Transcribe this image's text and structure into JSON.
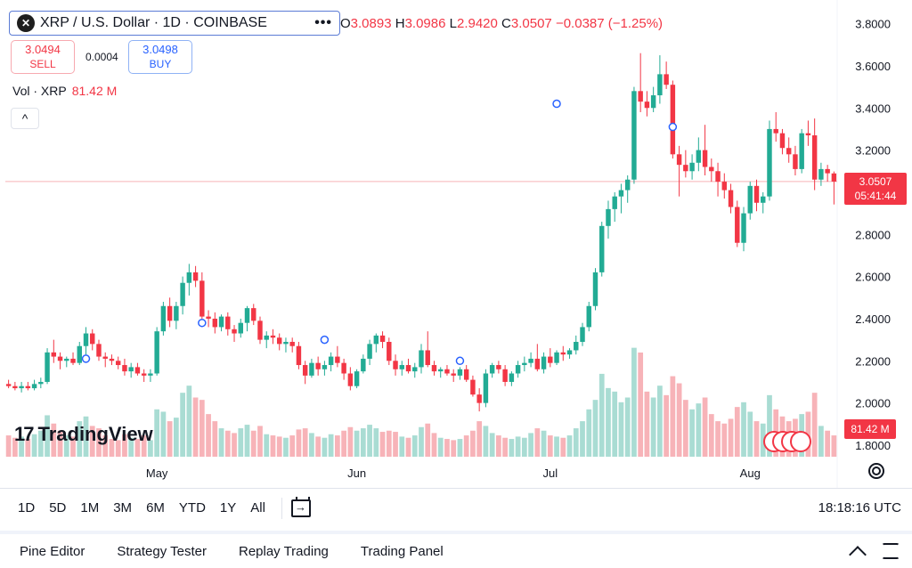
{
  "header": {
    "symbol_title": "XRP / U.S. Dollar · 1D · COINBASE",
    "logo_glyph": "✕",
    "more_icon": "•••",
    "ohlc": {
      "open_label": "O",
      "open": "3.0893",
      "high_label": "H",
      "high": "3.0986",
      "low_label": "L",
      "low": "2.9420",
      "close_label": "C",
      "close": "3.0507",
      "change": "−0.0387 (−1.25%)"
    }
  },
  "trade": {
    "sell_price": "3.0494",
    "sell_label": "SELL",
    "spread": "0.0004",
    "buy_price": "3.0498",
    "buy_label": "BUY"
  },
  "volume_legend": {
    "label": "Vol · XRP",
    "value": "81.42 M"
  },
  "collapse_icon": "^",
  "brand": {
    "mark": "17",
    "name": "TradingView"
  },
  "price_tag": {
    "price": "3.0507",
    "countdown": "05:41:44"
  },
  "volume_tag": "81.42 M",
  "colors": {
    "up": "#22ab94",
    "down": "#f23645",
    "up_vol": "#a9dcd3",
    "down_vol": "#f7b3b8"
  },
  "chart_data": {
    "type": "candlestick",
    "y_axis": {
      "ticks": [
        1.8,
        2.0,
        2.2,
        2.4,
        2.6,
        2.8,
        3.0,
        3.2,
        3.4,
        3.6,
        3.8
      ],
      "tick_labels": [
        "1.8000",
        "2.0000",
        "2.2000",
        "2.4000",
        "2.6000",
        "2.8000",
        "3.0000",
        "3.2000",
        "3.4000",
        "3.6000",
        "3.8000"
      ],
      "range": [
        1.745,
        3.87
      ]
    },
    "x_axis": {
      "labels": [
        {
          "text": "May",
          "index": 23
        },
        {
          "text": "Jun",
          "index": 54
        },
        {
          "text": "Jul",
          "index": 84
        },
        {
          "text": "Aug",
          "index": 115
        }
      ],
      "count": 129
    },
    "last_price": 3.0507,
    "volume_axis_max": 100,
    "candles": [
      {
        "o": 2.09,
        "h": 2.11,
        "l": 2.07,
        "c": 2.08,
        "v": 18
      },
      {
        "o": 2.08,
        "h": 2.1,
        "l": 2.06,
        "c": 2.07,
        "v": 16
      },
      {
        "o": 2.07,
        "h": 2.1,
        "l": 2.05,
        "c": 2.08,
        "v": 17
      },
      {
        "o": 2.08,
        "h": 2.1,
        "l": 2.06,
        "c": 2.07,
        "v": 15
      },
      {
        "o": 2.07,
        "h": 2.11,
        "l": 2.06,
        "c": 2.09,
        "v": 19
      },
      {
        "o": 2.09,
        "h": 2.12,
        "l": 2.07,
        "c": 2.1,
        "v": 22
      },
      {
        "o": 2.1,
        "h": 2.26,
        "l": 2.09,
        "c": 2.24,
        "v": 35
      },
      {
        "o": 2.24,
        "h": 2.3,
        "l": 2.19,
        "c": 2.22,
        "v": 28
      },
      {
        "o": 2.22,
        "h": 2.24,
        "l": 2.16,
        "c": 2.2,
        "v": 22
      },
      {
        "o": 2.2,
        "h": 2.22,
        "l": 2.17,
        "c": 2.21,
        "v": 18
      },
      {
        "o": 2.21,
        "h": 2.24,
        "l": 2.18,
        "c": 2.19,
        "v": 17
      },
      {
        "o": 2.19,
        "h": 2.29,
        "l": 2.18,
        "c": 2.27,
        "v": 30
      },
      {
        "o": 2.27,
        "h": 2.36,
        "l": 2.23,
        "c": 2.33,
        "v": 34
      },
      {
        "o": 2.33,
        "h": 2.35,
        "l": 2.25,
        "c": 2.28,
        "v": 26
      },
      {
        "o": 2.28,
        "h": 2.3,
        "l": 2.2,
        "c": 2.22,
        "v": 24
      },
      {
        "o": 2.22,
        "h": 2.24,
        "l": 2.17,
        "c": 2.21,
        "v": 18
      },
      {
        "o": 2.21,
        "h": 2.23,
        "l": 2.18,
        "c": 2.2,
        "v": 15
      },
      {
        "o": 2.2,
        "h": 2.22,
        "l": 2.16,
        "c": 2.18,
        "v": 14
      },
      {
        "o": 2.18,
        "h": 2.21,
        "l": 2.13,
        "c": 2.15,
        "v": 19
      },
      {
        "o": 2.15,
        "h": 2.19,
        "l": 2.12,
        "c": 2.17,
        "v": 16
      },
      {
        "o": 2.17,
        "h": 2.19,
        "l": 2.13,
        "c": 2.14,
        "v": 15
      },
      {
        "o": 2.14,
        "h": 2.16,
        "l": 2.1,
        "c": 2.13,
        "v": 18
      },
      {
        "o": 2.13,
        "h": 2.16,
        "l": 2.1,
        "c": 2.14,
        "v": 14
      },
      {
        "o": 2.14,
        "h": 2.36,
        "l": 2.13,
        "c": 2.34,
        "v": 40
      },
      {
        "o": 2.34,
        "h": 2.48,
        "l": 2.32,
        "c": 2.46,
        "v": 38
      },
      {
        "o": 2.46,
        "h": 2.5,
        "l": 2.36,
        "c": 2.39,
        "v": 30
      },
      {
        "o": 2.39,
        "h": 2.48,
        "l": 2.35,
        "c": 2.46,
        "v": 33
      },
      {
        "o": 2.46,
        "h": 2.6,
        "l": 2.42,
        "c": 2.57,
        "v": 54
      },
      {
        "o": 2.57,
        "h": 2.66,
        "l": 2.51,
        "c": 2.62,
        "v": 60
      },
      {
        "o": 2.62,
        "h": 2.65,
        "l": 2.55,
        "c": 2.58,
        "v": 50
      },
      {
        "o": 2.58,
        "h": 2.62,
        "l": 2.4,
        "c": 2.41,
        "v": 48
      },
      {
        "o": 2.41,
        "h": 2.44,
        "l": 2.36,
        "c": 2.4,
        "v": 36
      },
      {
        "o": 2.4,
        "h": 2.43,
        "l": 2.33,
        "c": 2.36,
        "v": 30
      },
      {
        "o": 2.36,
        "h": 2.42,
        "l": 2.34,
        "c": 2.41,
        "v": 24
      },
      {
        "o": 2.41,
        "h": 2.43,
        "l": 2.32,
        "c": 2.35,
        "v": 22
      },
      {
        "o": 2.35,
        "h": 2.37,
        "l": 2.29,
        "c": 2.33,
        "v": 20
      },
      {
        "o": 2.33,
        "h": 2.4,
        "l": 2.31,
        "c": 2.38,
        "v": 24
      },
      {
        "o": 2.38,
        "h": 2.46,
        "l": 2.34,
        "c": 2.45,
        "v": 27
      },
      {
        "o": 2.45,
        "h": 2.47,
        "l": 2.37,
        "c": 2.39,
        "v": 22
      },
      {
        "o": 2.39,
        "h": 2.41,
        "l": 2.28,
        "c": 2.3,
        "v": 26
      },
      {
        "o": 2.3,
        "h": 2.34,
        "l": 2.26,
        "c": 2.32,
        "v": 19
      },
      {
        "o": 2.32,
        "h": 2.35,
        "l": 2.28,
        "c": 2.31,
        "v": 18
      },
      {
        "o": 2.31,
        "h": 2.33,
        "l": 2.25,
        "c": 2.28,
        "v": 17
      },
      {
        "o": 2.28,
        "h": 2.31,
        "l": 2.24,
        "c": 2.29,
        "v": 16
      },
      {
        "o": 2.29,
        "h": 2.31,
        "l": 2.24,
        "c": 2.27,
        "v": 18
      },
      {
        "o": 2.27,
        "h": 2.29,
        "l": 2.16,
        "c": 2.18,
        "v": 23
      },
      {
        "o": 2.18,
        "h": 2.2,
        "l": 2.09,
        "c": 2.13,
        "v": 24
      },
      {
        "o": 2.13,
        "h": 2.21,
        "l": 2.12,
        "c": 2.19,
        "v": 20
      },
      {
        "o": 2.19,
        "h": 2.22,
        "l": 2.13,
        "c": 2.16,
        "v": 17
      },
      {
        "o": 2.16,
        "h": 2.2,
        "l": 2.13,
        "c": 2.18,
        "v": 16
      },
      {
        "o": 2.18,
        "h": 2.24,
        "l": 2.15,
        "c": 2.22,
        "v": 19
      },
      {
        "o": 2.22,
        "h": 2.27,
        "l": 2.17,
        "c": 2.19,
        "v": 18
      },
      {
        "o": 2.19,
        "h": 2.21,
        "l": 2.11,
        "c": 2.14,
        "v": 22
      },
      {
        "o": 2.14,
        "h": 2.17,
        "l": 2.06,
        "c": 2.08,
        "v": 25
      },
      {
        "o": 2.08,
        "h": 2.16,
        "l": 2.07,
        "c": 2.15,
        "v": 22
      },
      {
        "o": 2.15,
        "h": 2.23,
        "l": 2.14,
        "c": 2.21,
        "v": 24
      },
      {
        "o": 2.21,
        "h": 2.3,
        "l": 2.18,
        "c": 2.28,
        "v": 27
      },
      {
        "o": 2.28,
        "h": 2.33,
        "l": 2.24,
        "c": 2.32,
        "v": 24
      },
      {
        "o": 2.32,
        "h": 2.34,
        "l": 2.26,
        "c": 2.29,
        "v": 21
      },
      {
        "o": 2.29,
        "h": 2.31,
        "l": 2.18,
        "c": 2.2,
        "v": 22
      },
      {
        "o": 2.2,
        "h": 2.23,
        "l": 2.13,
        "c": 2.16,
        "v": 21
      },
      {
        "o": 2.16,
        "h": 2.2,
        "l": 2.13,
        "c": 2.18,
        "v": 17
      },
      {
        "o": 2.18,
        "h": 2.21,
        "l": 2.14,
        "c": 2.15,
        "v": 16
      },
      {
        "o": 2.15,
        "h": 2.19,
        "l": 2.12,
        "c": 2.17,
        "v": 18
      },
      {
        "o": 2.17,
        "h": 2.28,
        "l": 2.14,
        "c": 2.25,
        "v": 25
      },
      {
        "o": 2.25,
        "h": 2.34,
        "l": 2.17,
        "c": 2.18,
        "v": 28
      },
      {
        "o": 2.18,
        "h": 2.2,
        "l": 2.13,
        "c": 2.15,
        "v": 20
      },
      {
        "o": 2.15,
        "h": 2.17,
        "l": 2.12,
        "c": 2.16,
        "v": 16
      },
      {
        "o": 2.16,
        "h": 2.18,
        "l": 2.13,
        "c": 2.14,
        "v": 15
      },
      {
        "o": 2.14,
        "h": 2.16,
        "l": 2.1,
        "c": 2.13,
        "v": 14
      },
      {
        "o": 2.13,
        "h": 2.17,
        "l": 2.11,
        "c": 2.16,
        "v": 15
      },
      {
        "o": 2.16,
        "h": 2.18,
        "l": 2.1,
        "c": 2.11,
        "v": 18
      },
      {
        "o": 2.11,
        "h": 2.13,
        "l": 2.03,
        "c": 2.04,
        "v": 22
      },
      {
        "o": 2.04,
        "h": 2.07,
        "l": 1.96,
        "c": 2.0,
        "v": 30
      },
      {
        "o": 2.0,
        "h": 2.16,
        "l": 1.98,
        "c": 2.14,
        "v": 26
      },
      {
        "o": 2.14,
        "h": 2.19,
        "l": 2.12,
        "c": 2.18,
        "v": 20
      },
      {
        "o": 2.18,
        "h": 2.2,
        "l": 2.14,
        "c": 2.16,
        "v": 18
      },
      {
        "o": 2.16,
        "h": 2.18,
        "l": 2.08,
        "c": 2.1,
        "v": 16
      },
      {
        "o": 2.1,
        "h": 2.15,
        "l": 2.08,
        "c": 2.14,
        "v": 15
      },
      {
        "o": 2.14,
        "h": 2.2,
        "l": 2.12,
        "c": 2.18,
        "v": 17
      },
      {
        "o": 2.18,
        "h": 2.22,
        "l": 2.15,
        "c": 2.19,
        "v": 16
      },
      {
        "o": 2.19,
        "h": 2.24,
        "l": 2.17,
        "c": 2.21,
        "v": 20
      },
      {
        "o": 2.21,
        "h": 2.28,
        "l": 2.15,
        "c": 2.16,
        "v": 24
      },
      {
        "o": 2.16,
        "h": 2.24,
        "l": 2.14,
        "c": 2.22,
        "v": 22
      },
      {
        "o": 2.22,
        "h": 2.26,
        "l": 2.17,
        "c": 2.19,
        "v": 18
      },
      {
        "o": 2.19,
        "h": 2.25,
        "l": 2.18,
        "c": 2.24,
        "v": 17
      },
      {
        "o": 2.24,
        "h": 2.27,
        "l": 2.2,
        "c": 2.23,
        "v": 16
      },
      {
        "o": 2.23,
        "h": 2.26,
        "l": 2.21,
        "c": 2.25,
        "v": 18
      },
      {
        "o": 2.25,
        "h": 2.32,
        "l": 2.23,
        "c": 2.29,
        "v": 24
      },
      {
        "o": 2.29,
        "h": 2.38,
        "l": 2.27,
        "c": 2.36,
        "v": 30
      },
      {
        "o": 2.36,
        "h": 2.48,
        "l": 2.34,
        "c": 2.46,
        "v": 40
      },
      {
        "o": 2.46,
        "h": 2.64,
        "l": 2.44,
        "c": 2.62,
        "v": 48
      },
      {
        "o": 2.62,
        "h": 2.86,
        "l": 2.6,
        "c": 2.84,
        "v": 70
      },
      {
        "o": 2.84,
        "h": 2.96,
        "l": 2.78,
        "c": 2.92,
        "v": 58
      },
      {
        "o": 2.92,
        "h": 3.0,
        "l": 2.86,
        "c": 2.98,
        "v": 55
      },
      {
        "o": 2.98,
        "h": 3.04,
        "l": 2.9,
        "c": 3.01,
        "v": 46
      },
      {
        "o": 3.01,
        "h": 3.08,
        "l": 2.95,
        "c": 3.06,
        "v": 50
      },
      {
        "o": 3.06,
        "h": 3.5,
        "l": 3.04,
        "c": 3.48,
        "v": 92
      },
      {
        "o": 3.48,
        "h": 3.66,
        "l": 3.38,
        "c": 3.43,
        "v": 88
      },
      {
        "o": 3.43,
        "h": 3.48,
        "l": 3.36,
        "c": 3.4,
        "v": 55
      },
      {
        "o": 3.4,
        "h": 3.5,
        "l": 3.38,
        "c": 3.46,
        "v": 50
      },
      {
        "o": 3.46,
        "h": 3.65,
        "l": 3.42,
        "c": 3.56,
        "v": 60
      },
      {
        "o": 3.56,
        "h": 3.62,
        "l": 3.49,
        "c": 3.51,
        "v": 52
      },
      {
        "o": 3.51,
        "h": 3.53,
        "l": 3.16,
        "c": 3.18,
        "v": 68
      },
      {
        "o": 3.18,
        "h": 3.22,
        "l": 2.98,
        "c": 3.13,
        "v": 62
      },
      {
        "o": 3.13,
        "h": 3.2,
        "l": 3.07,
        "c": 3.1,
        "v": 48
      },
      {
        "o": 3.1,
        "h": 3.18,
        "l": 3.06,
        "c": 3.14,
        "v": 40
      },
      {
        "o": 3.14,
        "h": 3.26,
        "l": 3.1,
        "c": 3.2,
        "v": 45
      },
      {
        "o": 3.2,
        "h": 3.32,
        "l": 3.08,
        "c": 3.12,
        "v": 50
      },
      {
        "o": 3.12,
        "h": 3.16,
        "l": 3.05,
        "c": 3.1,
        "v": 36
      },
      {
        "o": 3.1,
        "h": 3.14,
        "l": 2.98,
        "c": 3.05,
        "v": 30
      },
      {
        "o": 3.05,
        "h": 3.09,
        "l": 2.97,
        "c": 3.01,
        "v": 28
      },
      {
        "o": 3.01,
        "h": 3.04,
        "l": 2.9,
        "c": 2.93,
        "v": 32
      },
      {
        "o": 2.93,
        "h": 2.96,
        "l": 2.74,
        "c": 2.76,
        "v": 42
      },
      {
        "o": 2.76,
        "h": 2.93,
        "l": 2.72,
        "c": 2.9,
        "v": 46
      },
      {
        "o": 2.9,
        "h": 3.05,
        "l": 2.87,
        "c": 3.03,
        "v": 38
      },
      {
        "o": 3.03,
        "h": 3.06,
        "l": 2.91,
        "c": 2.95,
        "v": 30
      },
      {
        "o": 2.95,
        "h": 3.0,
        "l": 2.9,
        "c": 2.98,
        "v": 28
      },
      {
        "o": 2.98,
        "h": 3.34,
        "l": 2.96,
        "c": 3.3,
        "v": 52
      },
      {
        "o": 3.3,
        "h": 3.38,
        "l": 3.24,
        "c": 3.28,
        "v": 40
      },
      {
        "o": 3.28,
        "h": 3.3,
        "l": 3.18,
        "c": 3.21,
        "v": 34
      },
      {
        "o": 3.21,
        "h": 3.26,
        "l": 3.14,
        "c": 3.18,
        "v": 30
      },
      {
        "o": 3.18,
        "h": 3.22,
        "l": 3.08,
        "c": 3.11,
        "v": 32
      },
      {
        "o": 3.11,
        "h": 3.3,
        "l": 3.09,
        "c": 3.28,
        "v": 36
      },
      {
        "o": 3.28,
        "h": 3.34,
        "l": 3.22,
        "c": 3.27,
        "v": 38
      },
      {
        "o": 3.27,
        "h": 3.35,
        "l": 3.01,
        "c": 3.06,
        "v": 54
      },
      {
        "o": 3.06,
        "h": 3.14,
        "l": 3.03,
        "c": 3.11,
        "v": 26
      },
      {
        "o": 3.11,
        "h": 3.13,
        "l": 3.05,
        "c": 3.09,
        "v": 22
      },
      {
        "o": 3.0893,
        "h": 3.0986,
        "l": 2.942,
        "c": 3.0507,
        "v": 18
      }
    ],
    "markers": [
      {
        "index": 12,
        "price": 2.21
      },
      {
        "index": 30,
        "price": 2.38
      },
      {
        "index": 49,
        "price": 2.3
      },
      {
        "index": 70,
        "price": 2.2
      },
      {
        "index": 85,
        "price": 3.42
      },
      {
        "index": 103,
        "price": 3.31
      }
    ]
  },
  "range_bar": {
    "buttons": [
      "1D",
      "5D",
      "1M",
      "3M",
      "6M",
      "YTD",
      "1Y",
      "All"
    ],
    "clock": "18:18:16 UTC"
  },
  "bottom_panel": {
    "tabs": [
      "Pine Editor",
      "Strategy Tester",
      "Replay Trading",
      "Trading Panel"
    ]
  }
}
